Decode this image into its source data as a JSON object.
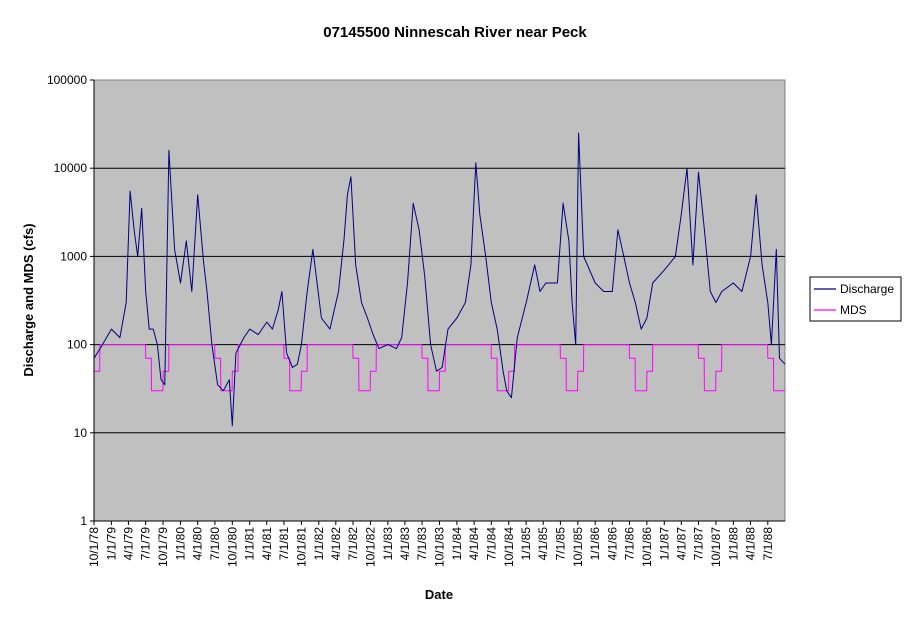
{
  "chart_data": {
    "type": "line",
    "title": "07145500 Ninnescah River near Peck",
    "xlabel": "Date",
    "ylabel": "Discharge and MDS (cfs)",
    "yscale": "log",
    "ylim": [
      1,
      100000
    ],
    "xlim": [
      "1978-10-01",
      "1988-09-30"
    ],
    "y_ticks": [
      "1",
      "10",
      "100",
      "1000",
      "10000",
      "100000"
    ],
    "x_ticks": [
      "10/1/78",
      "1/1/79",
      "4/1/79",
      "7/1/79",
      "10/1/79",
      "1/1/80",
      "4/1/80",
      "7/1/80",
      "10/1/80",
      "1/1/81",
      "4/1/81",
      "7/1/81",
      "10/1/81",
      "1/1/82",
      "4/1/82",
      "7/1/82",
      "10/1/82",
      "1/1/83",
      "4/1/83",
      "7/1/83",
      "10/1/83",
      "1/1/84",
      "4/1/84",
      "7/1/84",
      "10/1/84",
      "1/1/85",
      "4/1/85",
      "7/1/85",
      "10/1/85",
      "1/1/86",
      "4/1/86",
      "7/1/86",
      "10/1/86",
      "1/1/87",
      "4/1/87",
      "7/1/87",
      "10/1/87",
      "1/1/88",
      "4/1/88",
      "7/1/88"
    ],
    "grid": true,
    "legend_position": "right",
    "colors": {
      "plot_bg": "#c0c0c0",
      "discharge": "#000080",
      "mds": "#ff00ff",
      "grid": "#000000"
    },
    "series": [
      {
        "name": "Discharge",
        "x": [
          "1978-10-01",
          "1978-11-15",
          "1979-01-01",
          "1979-02-15",
          "1979-03-20",
          "1979-04-10",
          "1979-05-01",
          "1979-05-20",
          "1979-06-10",
          "1979-07-01",
          "1979-07-20",
          "1979-08-10",
          "1979-09-01",
          "1979-09-20",
          "1979-10-10",
          "1979-11-01",
          "1979-12-01",
          "1980-01-01",
          "1980-02-01",
          "1980-03-01",
          "1980-04-01",
          "1980-05-01",
          "1980-05-20",
          "1980-06-15",
          "1980-07-15",
          "1980-08-15",
          "1980-09-15",
          "1980-10-01",
          "1980-10-20",
          "1980-12-01",
          "1981-01-01",
          "1981-02-15",
          "1981-04-01",
          "1981-05-01",
          "1981-06-01",
          "1981-06-20",
          "1981-07-15",
          "1981-08-15",
          "1981-09-10",
          "1981-10-01",
          "1981-11-01",
          "1981-12-01",
          "1982-01-15",
          "1982-03-01",
          "1982-04-15",
          "1982-05-15",
          "1982-06-01",
          "1982-06-20",
          "1982-07-15",
          "1982-08-15",
          "1982-09-15",
          "1982-10-15",
          "1982-11-15",
          "1983-01-01",
          "1983-02-15",
          "1983-03-15",
          "1983-04-15",
          "1983-05-15",
          "1983-06-15",
          "1983-07-15",
          "1983-08-15",
          "1983-09-15",
          "1983-10-15",
          "1983-11-15",
          "1984-01-01",
          "1984-02-15",
          "1984-03-15",
          "1984-04-10",
          "1984-05-01",
          "1984-06-01",
          "1984-07-01",
          "1984-08-01",
          "1984-09-01",
          "1984-09-20",
          "1984-10-15",
          "1984-11-15",
          "1985-01-01",
          "1985-02-15",
          "1985-03-15",
          "1985-04-15",
          "1985-05-15",
          "1985-06-15",
          "1985-07-15",
          "1985-08-15",
          "1985-09-01",
          "1985-09-20",
          "1985-10-05",
          "1985-11-01",
          "1986-01-01",
          "1986-02-15",
          "1986-04-01",
          "1986-05-01",
          "1986-06-01",
          "1986-07-01",
          "1986-08-01",
          "1986-09-01",
          "1986-10-01",
          "1986-11-01",
          "1987-01-01",
          "1987-03-01",
          "1987-04-01",
          "1987-05-01",
          "1987-06-01",
          "1987-07-01",
          "1987-08-01",
          "1987-09-01",
          "1987-10-01",
          "1987-11-01",
          "1988-01-01",
          "1988-02-15",
          "1988-04-01",
          "1988-05-01",
          "1988-06-01",
          "1988-07-01",
          "1988-07-20",
          "1988-08-15",
          "1988-09-01",
          "1988-09-30"
        ],
        "values": [
          70,
          100,
          150,
          120,
          300,
          5500,
          2000,
          1000,
          3500,
          400,
          150,
          150,
          100,
          40,
          35,
          16000,
          1200,
          500,
          1500,
          400,
          5000,
          900,
          400,
          100,
          35,
          30,
          40,
          12,
          80,
          120,
          150,
          130,
          180,
          150,
          250,
          400,
          80,
          55,
          60,
          100,
          400,
          1200,
          200,
          150,
          400,
          1600,
          5000,
          8000,
          800,
          300,
          200,
          130,
          90,
          100,
          90,
          120,
          500,
          4000,
          2000,
          600,
          100,
          50,
          55,
          150,
          200,
          300,
          800,
          11500,
          3000,
          1000,
          300,
          150,
          50,
          30,
          25,
          120,
          300,
          800,
          400,
          500,
          500,
          500,
          4000,
          1500,
          300,
          100,
          25000,
          1000,
          500,
          400,
          400,
          2000,
          1000,
          500,
          300,
          150,
          200,
          500,
          700,
          1000,
          3000,
          10000,
          800,
          9000,
          2000,
          400,
          300,
          400,
          500,
          400,
          1000,
          5000,
          800,
          300,
          100,
          1200,
          70,
          60
        ]
      },
      {
        "name": "MDS",
        "x": [
          "1978-10-01",
          "1978-10-31",
          "1978-11-01",
          "1979-06-30",
          "1979-07-01",
          "1979-07-31",
          "1979-08-01",
          "1979-09-30",
          "1979-10-01",
          "1979-10-31",
          "1979-11-01",
          "1980-06-30",
          "1980-07-01",
          "1980-07-31",
          "1980-08-01",
          "1980-09-30",
          "1980-10-01",
          "1980-10-31",
          "1980-11-01",
          "1981-06-30",
          "1981-07-01",
          "1981-07-31",
          "1981-08-01",
          "1981-09-30",
          "1981-10-01",
          "1981-10-31",
          "1981-11-01",
          "1982-06-30",
          "1982-07-01",
          "1982-07-31",
          "1982-08-01",
          "1982-09-30",
          "1982-10-01",
          "1982-10-31",
          "1982-11-01",
          "1983-06-30",
          "1983-07-01",
          "1983-07-31",
          "1983-08-01",
          "1983-09-30",
          "1983-10-01",
          "1983-10-31",
          "1983-11-01",
          "1984-06-30",
          "1984-07-01",
          "1984-07-31",
          "1984-08-01",
          "1984-09-30",
          "1984-10-01",
          "1984-10-31",
          "1984-11-01",
          "1985-06-30",
          "1985-07-01",
          "1985-07-31",
          "1985-08-01",
          "1985-09-30",
          "1985-10-01",
          "1985-10-31",
          "1985-11-01",
          "1986-06-30",
          "1986-07-01",
          "1986-07-31",
          "1986-08-01",
          "1986-09-30",
          "1986-10-01",
          "1986-10-31",
          "1986-11-01",
          "1987-06-30",
          "1987-07-01",
          "1987-07-31",
          "1987-08-01",
          "1987-09-30",
          "1987-10-01",
          "1987-10-31",
          "1987-11-01",
          "1988-06-30",
          "1988-07-01",
          "1988-07-31",
          "1988-08-01",
          "1988-09-30"
        ],
        "values": [
          50,
          50,
          100,
          100,
          70,
          70,
          30,
          30,
          50,
          50,
          100,
          100,
          70,
          70,
          30,
          30,
          50,
          50,
          100,
          100,
          70,
          70,
          30,
          30,
          50,
          50,
          100,
          100,
          70,
          70,
          30,
          30,
          50,
          50,
          100,
          100,
          70,
          70,
          30,
          30,
          50,
          50,
          100,
          100,
          70,
          70,
          30,
          30,
          50,
          50,
          100,
          100,
          70,
          70,
          30,
          30,
          50,
          50,
          100,
          100,
          70,
          70,
          30,
          30,
          50,
          50,
          100,
          100,
          70,
          70,
          30,
          30,
          50,
          50,
          100,
          100,
          70,
          70,
          30,
          30
        ]
      }
    ]
  }
}
